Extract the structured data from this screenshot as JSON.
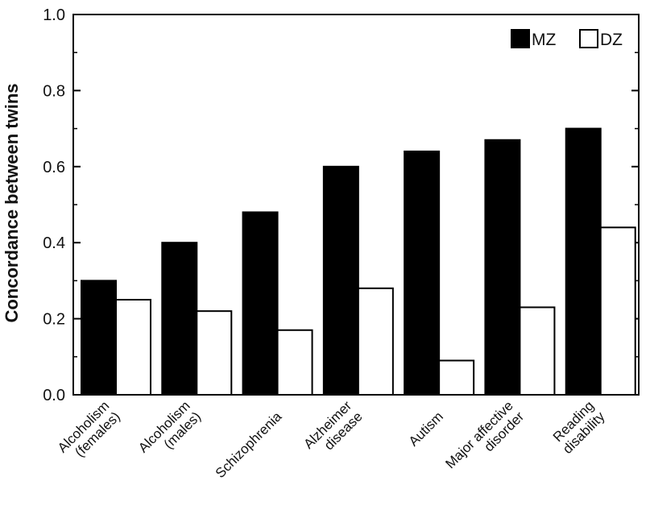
{
  "chart_data": {
    "type": "bar",
    "title": "",
    "xlabel": "",
    "ylabel": "Concordance between twins",
    "ylim": [
      0,
      1.0
    ],
    "yticks": [
      "0.0",
      "0.2",
      "0.4",
      "0.6",
      "0.8",
      "1.0"
    ],
    "grid": false,
    "legend_position": "top-right",
    "categories": [
      [
        "Alcoholism",
        "(females)"
      ],
      [
        "Alcoholism",
        "(males)"
      ],
      [
        "Schizophrenia"
      ],
      [
        "Alzheimer",
        "disease"
      ],
      [
        "Autism"
      ],
      [
        "Major affective",
        "disorder"
      ],
      [
        "Reading",
        "disability"
      ]
    ],
    "series": [
      {
        "name": "MZ",
        "color": "#000000",
        "values": [
          0.3,
          0.4,
          0.48,
          0.6,
          0.64,
          0.67,
          0.7
        ]
      },
      {
        "name": "DZ",
        "color": "#ffffff",
        "values": [
          0.25,
          0.22,
          0.17,
          0.28,
          0.09,
          0.23,
          0.44
        ]
      }
    ]
  }
}
